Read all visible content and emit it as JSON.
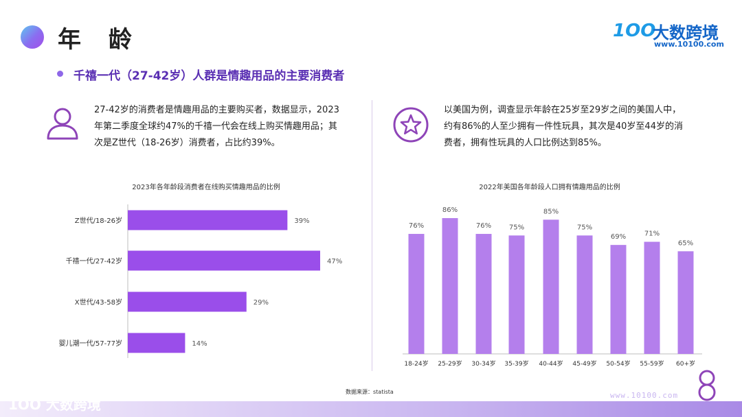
{
  "page": {
    "title": "年 龄",
    "subtitle": "千禧一代（27-42岁）人群是情趣用品的主要消费者",
    "logo": {
      "mark": "1OO",
      "name": "大数跨境",
      "url": "www.10100.com"
    }
  },
  "left_block": {
    "icon": "person-icon",
    "text_lines": [
      "27-42岁的消费者是情趣用品的主要购买者，数据显示，2023",
      "年第二季度全球约47%的千禧一代会在线上购买情趣用品；其",
      "次是Z世代（18-26岁）消费者，占比约39%。"
    ]
  },
  "right_block": {
    "icon": "star-icon",
    "text_lines": [
      "以美国为例，调查显示年龄在25岁至29岁之间的美国人中，",
      "约有86%的人至少拥有一件性玩具，其次是40岁至44岁的消",
      "费者，拥有性玩具的人口比例达到85%。"
    ]
  },
  "colors": {
    "accent": "#9d55ea",
    "bar_h": "#9a4eea",
    "bar_v": "#b47fec",
    "subtitle": "#5a2fb3"
  },
  "chart_data": [
    {
      "type": "bar",
      "orientation": "horizontal",
      "title": "2023年各年龄段消费者在线购买情趣用品的比例",
      "categories": [
        "Z世代/18-26岁",
        "千禧一代/27-42岁",
        "X世代/43-58岁",
        "婴儿潮一代/57-77岁"
      ],
      "values": [
        39,
        47,
        29,
        14
      ],
      "labels": [
        "39%",
        "47%",
        "29%",
        "14%"
      ],
      "unit": "%",
      "xlim": [
        0,
        50
      ],
      "grid": false
    },
    {
      "type": "bar",
      "orientation": "vertical",
      "title": "2022年美国各年龄段人口拥有情趣用品的比例",
      "categories": [
        "18-24岁",
        "25-29岁",
        "30-34岁",
        "35-39岁",
        "40-44岁",
        "45-49岁",
        "50-54岁",
        "55-59岁",
        "60+岁"
      ],
      "values": [
        76,
        86,
        76,
        75,
        85,
        75,
        69,
        71,
        65
      ],
      "labels": [
        "76%",
        "86%",
        "76%",
        "75%",
        "85%",
        "75%",
        "69%",
        "71%",
        "65%"
      ],
      "unit": "%",
      "ylim": [
        0,
        100
      ],
      "grid": false
    }
  ],
  "source": "数据来源：statista",
  "footer": {
    "logo": "1OO 大数跨境",
    "url": "www.10100.com"
  }
}
